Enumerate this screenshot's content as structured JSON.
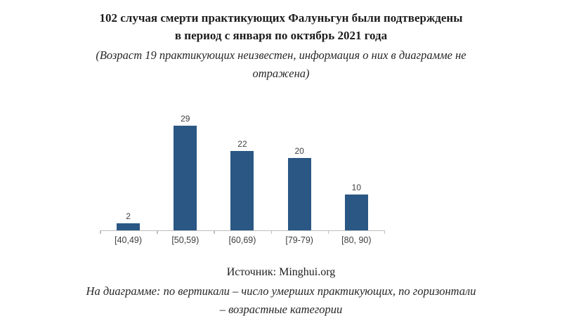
{
  "header": {
    "title_line1": "102 случая смерти практикующих Фалуньгун были подтверждены",
    "title_line2": "в период с января по октябрь 2021 года",
    "subtitle": "(Возраст 19 практикующих неизвестен, информация о них в диаграмме не отражена)"
  },
  "chart_data": {
    "type": "bar",
    "categories": [
      "[40,49)",
      "[50,59)",
      "[60,69)",
      "[79-79)",
      "[80, 90)"
    ],
    "values": [
      2,
      29,
      22,
      20,
      10
    ],
    "title": "102 случая смерти практикующих Фалуньгун были подтверждены в период с января по октябрь 2021 года",
    "xlabel": "возрастные категории",
    "ylabel": "число умерших практикующих",
    "ylim": [
      0,
      30
    ],
    "bar_color": "#2A5784",
    "axis_color": "#bfbfbf",
    "data_labels": true,
    "grid": false,
    "legend": false
  },
  "footer": {
    "source": "Источник: Minghui.org",
    "caption": "На диаграмме: по вертикали – число умерших практикующих, по горизонтали – возрастные категории"
  }
}
